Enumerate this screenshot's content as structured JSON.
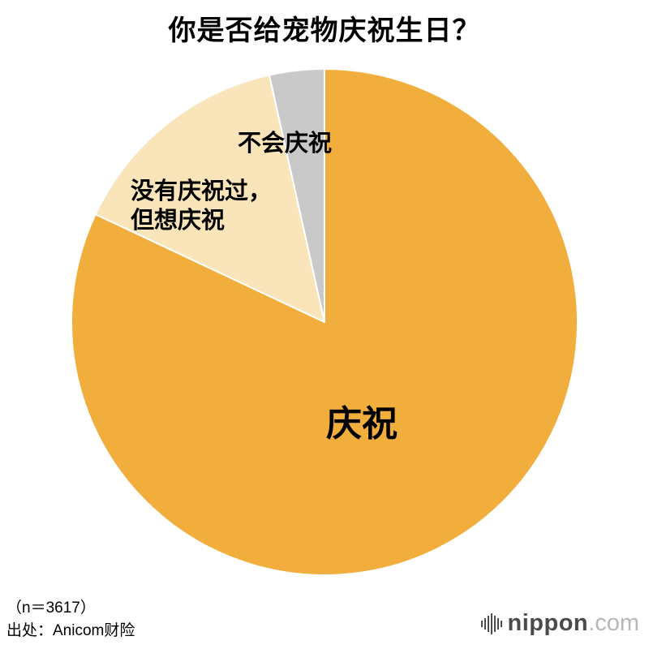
{
  "title": "你是否给宠物庆祝生日？",
  "chart_data": {
    "type": "pie",
    "title": "你是否给宠物庆祝生日？",
    "labels": [
      "庆祝",
      "没有庆祝过，但想庆祝",
      "不会庆祝"
    ],
    "ids": [
      "celebrate",
      "want-to-celebrate",
      "no-celebrate"
    ],
    "values": [
      82,
      14.5,
      3.5
    ],
    "colors": [
      "#F2AE3C",
      "#FAE4B9",
      "#C9C9C9"
    ],
    "start_angle_deg": 0,
    "direction": "clockwise",
    "legend": "none",
    "label_placement": "on-chart",
    "slice_border_color": "#ffffff"
  },
  "slice_labels": {
    "celebrate": "庆祝",
    "want_line1": "没有庆祝过，",
    "want_line2": "但想庆祝",
    "no_celebrate": "不会庆祝"
  },
  "footer": {
    "sample_size": "（n＝3617）",
    "source": "出处：Anicom财险"
  },
  "logo": {
    "name": "nippon",
    "tld": ".com"
  }
}
